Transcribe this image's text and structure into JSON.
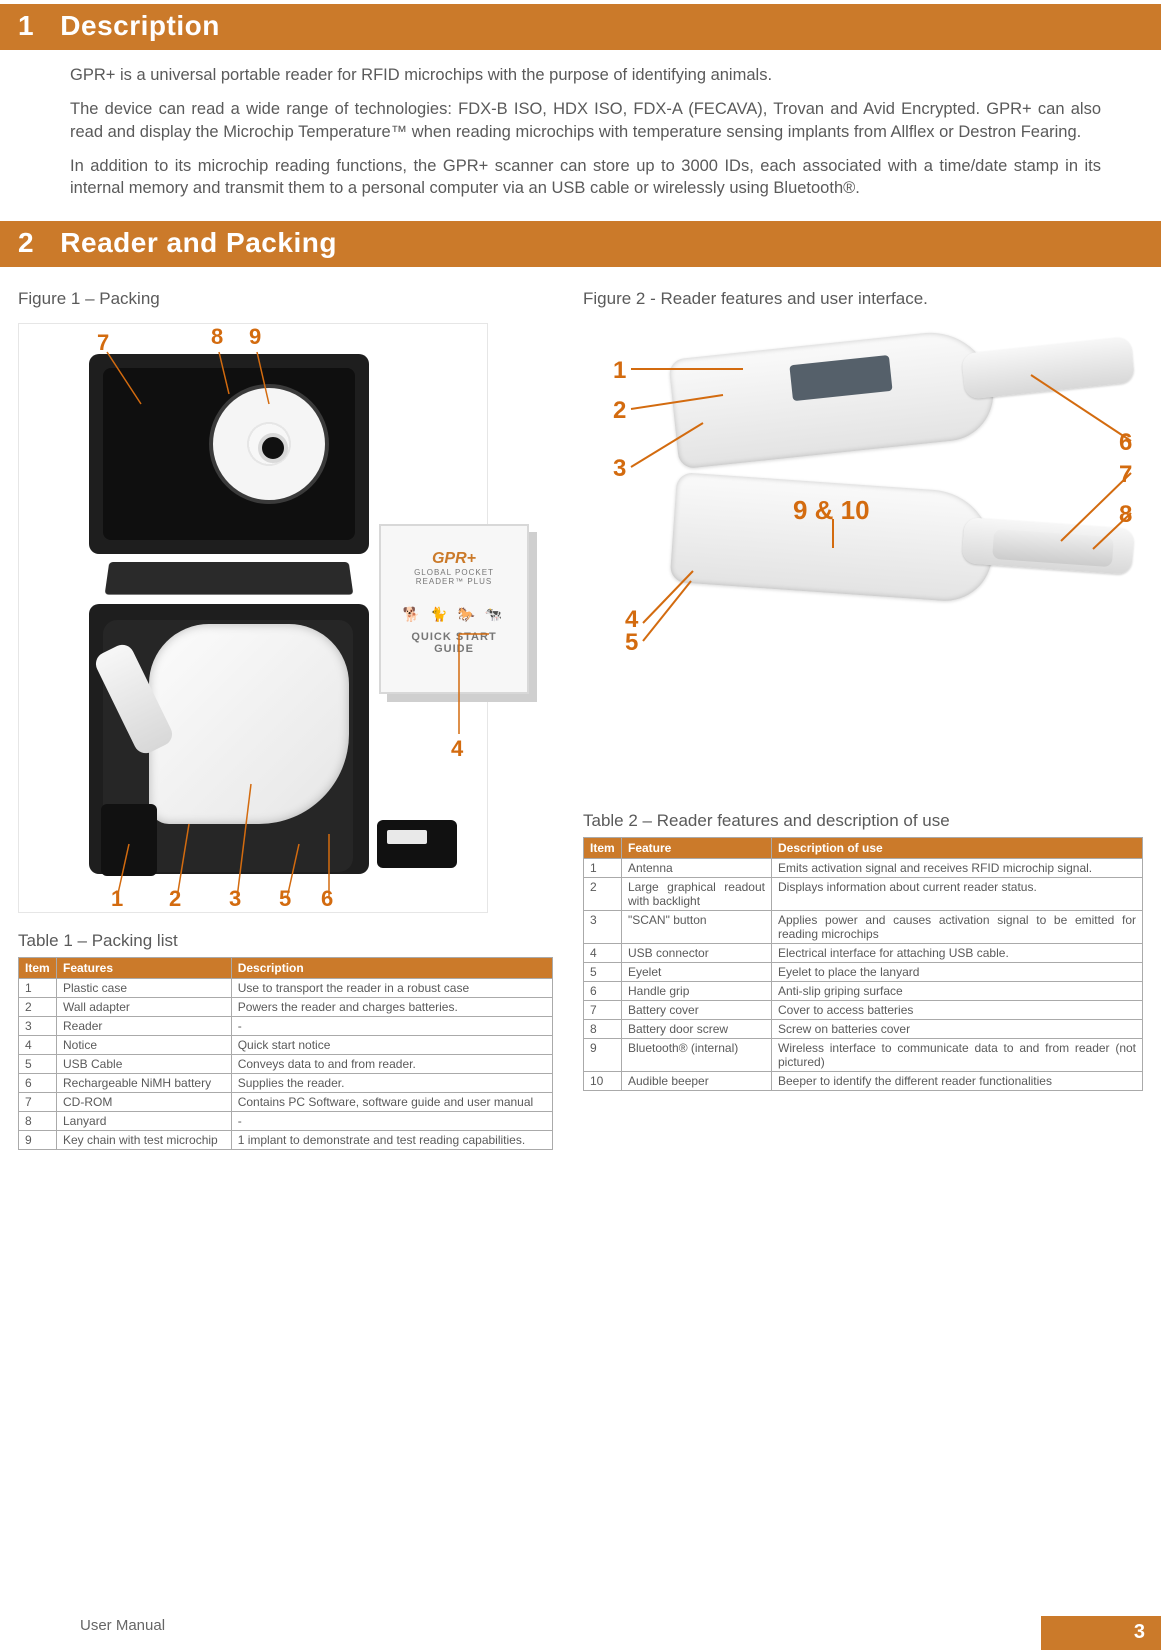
{
  "colors": {
    "accent": "#cb7a2a",
    "callout": "#d36b0f",
    "text": "#5a5a5a",
    "table_border": "#aaaaaa",
    "bg": "#ffffff"
  },
  "typography": {
    "body_fontsize_pt": 12,
    "heading_fontsize_pt": 21,
    "caption_fontsize_pt": 13,
    "table_fontsize_pt": 9
  },
  "sections": {
    "s1": {
      "num": "1",
      "title": "Description"
    },
    "s2": {
      "num": "2",
      "title": "Reader and Packing"
    }
  },
  "description": {
    "p1": "GPR+ is a universal portable reader for RFID microchips with the purpose of identifying animals.",
    "p2": "The device can read a wide range of technologies: FDX-B ISO, HDX ISO, FDX-A (FECAVA), Trovan and Avid Encrypted. GPR+ can also read and display the Microchip Temperature™ when reading microchips with temperature sensing implants from Allflex or Destron Fearing.",
    "p3": "In addition to its microchip reading functions, the GPR+ scanner can store up to 3000 IDs, each associated with a time/date stamp in its internal memory and transmit them to a personal computer via an USB cable or wirelessly using Bluetooth®."
  },
  "figures": {
    "fig1_caption": "Figure 1 – Packing",
    "fig2_caption": "Figure 2 - Reader features and user interface.",
    "fig1_callouts": {
      "n1": "1",
      "n2": "2",
      "n3": "3",
      "n4": "4",
      "n5": "5",
      "n6": "6",
      "n7": "7",
      "n8": "8",
      "n9": "9"
    },
    "fig2_callouts": {
      "n1": "1",
      "n2": "2",
      "n3": "3",
      "n45": "4\n5",
      "n6": "6",
      "n7": "7",
      "n8": "8",
      "n910": "9 & 10"
    },
    "qsg": {
      "brand": "GPR+",
      "sub": "GLOBAL POCKET READER™ PLUS",
      "title": "QUICK START GUIDE"
    }
  },
  "table1": {
    "caption": "Table 1 – Packing list",
    "columns": [
      "Item",
      "Features",
      "Description"
    ],
    "col_widths_pct": [
      8,
      36,
      56
    ],
    "rows": [
      [
        "1",
        "Plastic case",
        "Use to transport the reader in a robust case"
      ],
      [
        "2",
        "Wall adapter",
        "Powers the reader and charges batteries."
      ],
      [
        "3",
        "Reader",
        "-"
      ],
      [
        "4",
        "Notice",
        "Quick start notice"
      ],
      [
        "5",
        "USB Cable",
        "Conveys data to and from reader."
      ],
      [
        "6",
        "Rechargeable NiMH battery",
        "Supplies the reader."
      ],
      [
        "7",
        "CD-ROM",
        "Contains PC Software, software guide and user manual"
      ],
      [
        "8",
        "Lanyard",
        "-"
      ],
      [
        "9",
        "Key chain with test microchip",
        "1 implant to demonstrate and test reading capabilities."
      ]
    ]
  },
  "table2": {
    "caption": "Table 2 – Reader features and description of use",
    "columns": [
      "Item",
      "Feature",
      "Description of use"
    ],
    "col_widths_pct": [
      8,
      30,
      62
    ],
    "rows": [
      [
        "1",
        "Antenna",
        "Emits activation signal and receives RFID microchip signal."
      ],
      [
        "2",
        "Large graphical readout with backlight",
        "Displays information about current reader status."
      ],
      [
        "3",
        "\"SCAN\" button",
        "Applies power and causes activation signal to be emitted for reading microchips"
      ],
      [
        "4",
        "USB connector",
        "Electrical interface for attaching USB cable."
      ],
      [
        "5",
        "Eyelet",
        "Eyelet to place the lanyard"
      ],
      [
        "6",
        "Handle grip",
        "Anti-slip griping surface"
      ],
      [
        "7",
        "Battery cover",
        "Cover to access batteries"
      ],
      [
        "8",
        "Battery door screw",
        "Screw on batteries cover"
      ],
      [
        "9",
        "Bluetooth® (internal)",
        "Wireless interface to communicate data to and from reader (not pictured)"
      ],
      [
        "10",
        "Audible beeper",
        "Beeper to identify the different reader functionalities"
      ]
    ]
  },
  "footer": {
    "label": "User Manual",
    "page": "3"
  }
}
